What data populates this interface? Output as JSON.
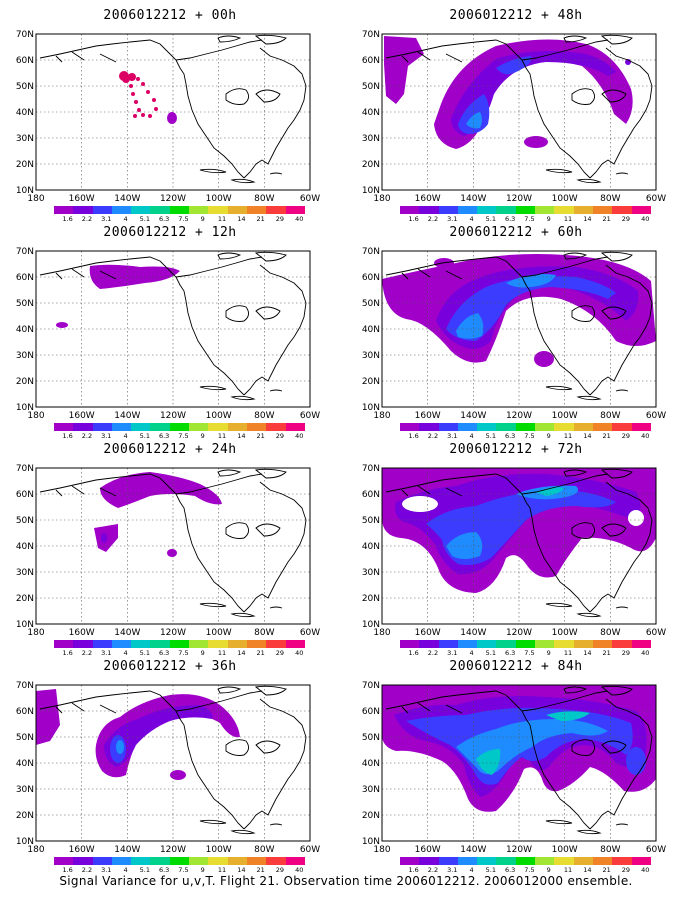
{
  "caption": "Signal Variance for u,v,T. Flight 21. Observation time 2006012212. 2006012000 ensemble.",
  "colorbar": {
    "labels": [
      "1.6",
      "2.2",
      "3.1",
      "4",
      "5.1",
      "6.3",
      "7.5",
      "9",
      "11",
      "14",
      "21",
      "29",
      "40"
    ],
    "colors": [
      "#a000c8",
      "#7800dc",
      "#3c3cff",
      "#1e8cff",
      "#00c8c8",
      "#00d28c",
      "#00dc00",
      "#a0e632",
      "#e6dc32",
      "#e6af2d",
      "#f08228",
      "#fa3c3c",
      "#f00082"
    ]
  },
  "axes": {
    "lat_labels": [
      "70N",
      "60N",
      "50N",
      "40N",
      "30N",
      "20N",
      "10N"
    ],
    "lon_labels": [
      "180",
      "160W",
      "140W",
      "120W",
      "100W",
      "80W",
      "60W"
    ]
  },
  "panels": [
    {
      "id": "p00",
      "title": "2006012212 + 00h"
    },
    {
      "id": "p48",
      "title": "2006012212 + 48h"
    },
    {
      "id": "p12",
      "title": "2006012212 + 12h"
    },
    {
      "id": "p60",
      "title": "2006012212 + 60h"
    },
    {
      "id": "p24",
      "title": "2006012212 + 24h"
    },
    {
      "id": "p72",
      "title": "2006012212 + 72h"
    },
    {
      "id": "p36",
      "title": "2006012212 + 36h"
    },
    {
      "id": "p84",
      "title": "2006012212 + 84h"
    }
  ]
}
